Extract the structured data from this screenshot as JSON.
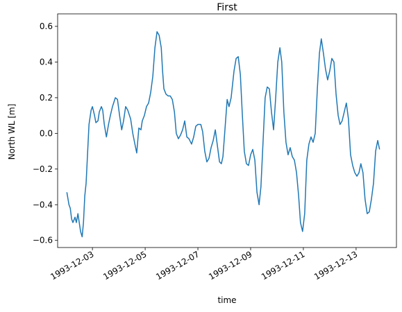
{
  "chart_data": {
    "type": "line",
    "title": "First",
    "x_label": "time",
    "y_label": "North WL [m]",
    "x": [
      2.03,
      2.11,
      2.16,
      2.21,
      2.26,
      2.34,
      2.39,
      2.45,
      2.5,
      2.55,
      2.61,
      2.66,
      2.71,
      2.76,
      2.82,
      2.87,
      2.95,
      3.0,
      3.08,
      3.13,
      3.21,
      3.26,
      3.34,
      3.39,
      3.45,
      3.53,
      3.61,
      3.68,
      3.76,
      3.87,
      3.95,
      4.03,
      4.11,
      4.18,
      4.26,
      4.34,
      4.45,
      4.53,
      4.61,
      4.68,
      4.76,
      4.84,
      4.89,
      4.97,
      5.05,
      5.13,
      5.21,
      5.29,
      5.37,
      5.45,
      5.53,
      5.61,
      5.66,
      5.71,
      5.79,
      5.87,
      5.95,
      6.03,
      6.11,
      6.18,
      6.26,
      6.34,
      6.42,
      6.5,
      6.58,
      6.66,
      6.76,
      6.84,
      6.92,
      7.0,
      7.11,
      7.18,
      7.26,
      7.34,
      7.42,
      7.5,
      7.58,
      7.66,
      7.74,
      7.82,
      7.89,
      7.95,
      8.03,
      8.11,
      8.18,
      8.26,
      8.37,
      8.45,
      8.53,
      8.61,
      8.68,
      8.76,
      8.84,
      8.92,
      9.0,
      9.08,
      9.16,
      9.24,
      9.32,
      9.39,
      9.47,
      9.55,
      9.63,
      9.71,
      9.79,
      9.87,
      9.95,
      10.03,
      10.11,
      10.18,
      10.26,
      10.34,
      10.42,
      10.5,
      10.58,
      10.66,
      10.74,
      10.82,
      10.89,
      10.97,
      11.05,
      11.13,
      11.21,
      11.29,
      11.37,
      11.45,
      11.53,
      11.61,
      11.68,
      11.76,
      11.84,
      11.92,
      12.0,
      12.08,
      12.16,
      12.24,
      12.32,
      12.39,
      12.47,
      12.55,
      12.63,
      12.71,
      12.79,
      12.87,
      12.95,
      13.03,
      13.11,
      13.18,
      13.26,
      13.34,
      13.42,
      13.5,
      13.58,
      13.66,
      13.74,
      13.82,
      13.89
    ],
    "series": [
      {
        "name": "North WL",
        "color": "#1f77b4",
        "values": [
          -0.33,
          -0.4,
          -0.42,
          -0.48,
          -0.5,
          -0.47,
          -0.5,
          -0.45,
          -0.5,
          -0.55,
          -0.58,
          -0.5,
          -0.35,
          -0.28,
          -0.1,
          0.05,
          0.13,
          0.15,
          0.1,
          0.06,
          0.07,
          0.12,
          0.15,
          0.13,
          0.05,
          -0.02,
          0.05,
          0.1,
          0.15,
          0.2,
          0.19,
          0.1,
          0.02,
          0.07,
          0.15,
          0.13,
          0.08,
          0.0,
          -0.06,
          -0.11,
          0.03,
          0.02,
          0.07,
          0.1,
          0.15,
          0.17,
          0.23,
          0.32,
          0.48,
          0.57,
          0.55,
          0.48,
          0.35,
          0.25,
          0.22,
          0.21,
          0.21,
          0.19,
          0.12,
          0.0,
          -0.03,
          -0.01,
          0.02,
          0.07,
          -0.02,
          -0.03,
          -0.06,
          -0.02,
          0.04,
          0.05,
          0.05,
          0.01,
          -0.1,
          -0.16,
          -0.14,
          -0.08,
          -0.04,
          0.02,
          -0.07,
          -0.16,
          -0.17,
          -0.13,
          0.03,
          0.19,
          0.15,
          0.2,
          0.35,
          0.42,
          0.43,
          0.33,
          0.12,
          -0.1,
          -0.17,
          -0.18,
          -0.12,
          -0.09,
          -0.15,
          -0.33,
          -0.4,
          -0.3,
          -0.05,
          0.2,
          0.26,
          0.25,
          0.12,
          0.02,
          0.2,
          0.4,
          0.48,
          0.4,
          0.12,
          -0.05,
          -0.12,
          -0.08,
          -0.13,
          -0.15,
          -0.22,
          -0.35,
          -0.5,
          -0.55,
          -0.45,
          -0.15,
          -0.06,
          -0.02,
          -0.05,
          0.0,
          0.25,
          0.45,
          0.53,
          0.45,
          0.36,
          0.3,
          0.35,
          0.42,
          0.4,
          0.22,
          0.1,
          0.05,
          0.07,
          0.12,
          0.17,
          0.08,
          -0.12,
          -0.18,
          -0.22,
          -0.24,
          -0.22,
          -0.17,
          -0.22,
          -0.37,
          -0.45,
          -0.44,
          -0.37,
          -0.28,
          -0.1,
          -0.04,
          -0.09
        ]
      }
    ],
    "xlim": [
      1.68,
      14.53
    ],
    "ylim": [
      -0.64,
      0.67
    ],
    "xticks": [
      {
        "value": 3,
        "label": "1993-12-03"
      },
      {
        "value": 5,
        "label": "1993-12-05"
      },
      {
        "value": 7,
        "label": "1993-12-07"
      },
      {
        "value": 9,
        "label": "1993-12-09"
      },
      {
        "value": 11,
        "label": "1993-12-11"
      },
      {
        "value": 13,
        "label": "1993-12-13"
      }
    ],
    "yticks": [
      {
        "value": -0.6,
        "label": "−0.6"
      },
      {
        "value": -0.4,
        "label": "−0.4"
      },
      {
        "value": -0.2,
        "label": "−0.2"
      },
      {
        "value": 0,
        "label": "0.0"
      },
      0.2,
      0.4,
      0.6
    ],
    "grid": false
  }
}
